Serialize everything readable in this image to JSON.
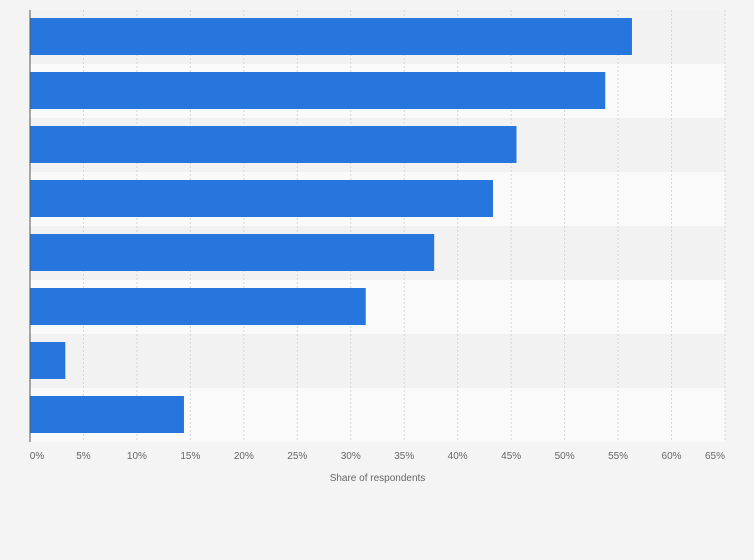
{
  "chart_data": {
    "type": "bar",
    "orientation": "horizontal",
    "title": "",
    "xlabel": "Share of respondents",
    "ylabel": "",
    "categories": [
      "",
      "",
      "",
      "",
      "",
      "",
      "",
      ""
    ],
    "values": [
      56.3,
      53.8,
      45.5,
      43.3,
      37.8,
      31.4,
      3.3,
      14.4
    ],
    "xlim": [
      0,
      65
    ],
    "xticks": [
      0,
      5,
      10,
      15,
      20,
      25,
      30,
      35,
      40,
      45,
      50,
      55,
      60,
      65
    ],
    "xtick_labels": [
      "0%",
      "5%",
      "10%",
      "15%",
      "20%",
      "25%",
      "30%",
      "35%",
      "40%",
      "45%",
      "50%",
      "55%",
      "60%",
      "65%"
    ],
    "grid": true,
    "legend": "none",
    "bar_color": "#2776dd",
    "row_band_colors": [
      "#f2f2f2",
      "#fafafa"
    ],
    "background_color": "#f4f4f4"
  }
}
